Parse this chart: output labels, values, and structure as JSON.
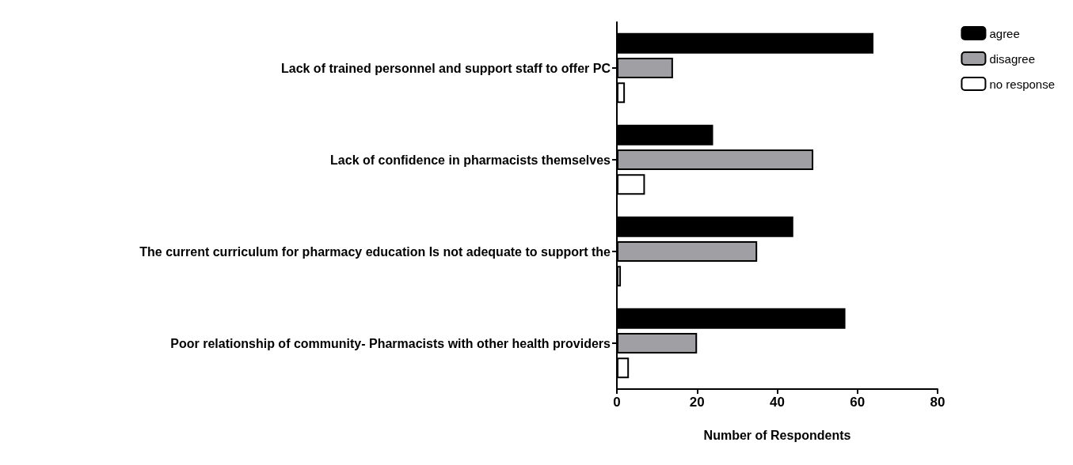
{
  "chart_data": {
    "type": "bar",
    "orientation": "horizontal",
    "xlabel": "Number of Respondents",
    "categories": [
      "Lack of trained personnel and support staff to offer PC",
      "Lack of confidence in pharmacists themselves",
      "The current curriculum for pharmacy education Is not adequate to support the",
      "Poor relationship of community- Pharmacists with other health providers"
    ],
    "series": [
      {
        "name": "agree",
        "color": "#000000",
        "values": [
          64,
          24,
          44,
          57
        ]
      },
      {
        "name": "disagree",
        "color": "#a0a0a4",
        "values": [
          14,
          49,
          35,
          20
        ]
      },
      {
        "name": "no response",
        "color": "#ffffff",
        "values": [
          2,
          7,
          1,
          3
        ]
      }
    ],
    "xlim": [
      0,
      80
    ],
    "xticks": [
      0,
      20,
      40,
      60,
      80
    ],
    "grid": false,
    "legend": "top right"
  }
}
